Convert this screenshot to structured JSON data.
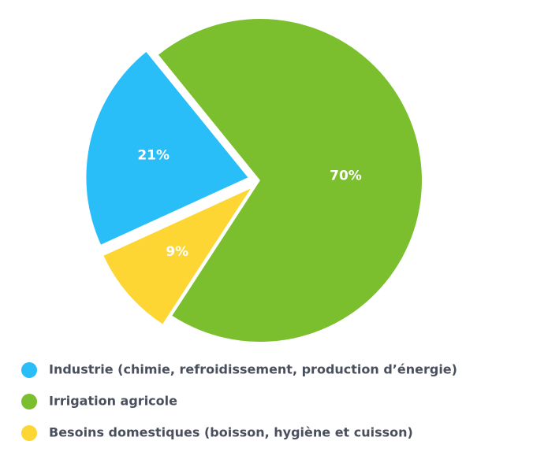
{
  "chart_data": {
    "type": "pie",
    "series": [
      {
        "name": "Industrie (chimie, refroidissement, production d’énergie)",
        "color": "#29bef8",
        "values": [
          21
        ],
        "value_labels": [
          "21%"
        ]
      },
      {
        "name": "Irrigation agricole",
        "color": "#7bbf2e",
        "values": [
          70
        ],
        "value_labels": [
          "70%"
        ]
      },
      {
        "name": "Besoins domestiques (boisson, hygiène et cuisson)",
        "color": "#fdd633",
        "values": [
          9
        ],
        "value_labels": [
          "9%"
        ]
      }
    ]
  }
}
